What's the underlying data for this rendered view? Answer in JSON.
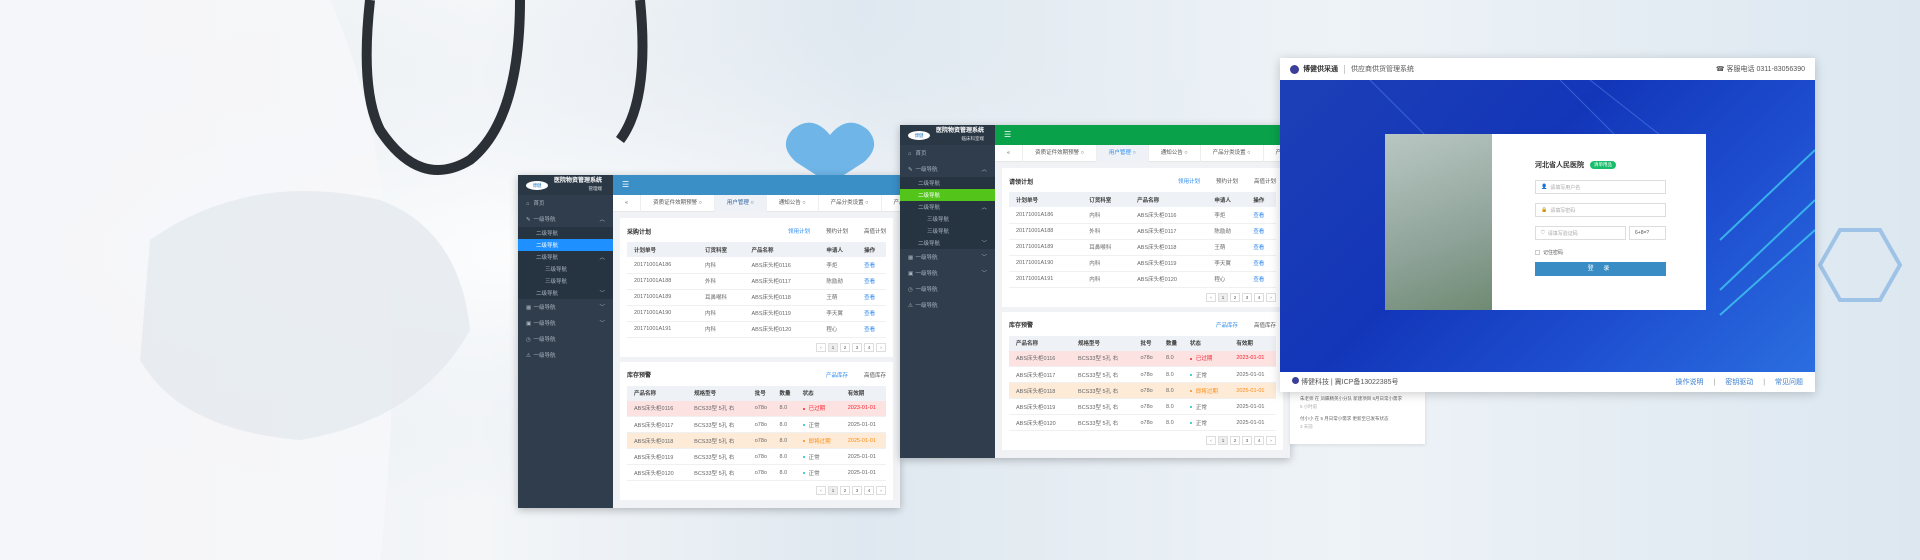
{
  "dashboards": [
    {
      "app_title": "医院物资管理系统",
      "app_sub": "管理端",
      "logo_text": "博健",
      "accent": "#3a8fc6",
      "active": "#1e90ff",
      "plan_title": "采购计划"
    },
    {
      "app_title": "医院物资管理系统",
      "app_sub": "临床科室端",
      "logo_text": "博健",
      "accent": "#0aa14b",
      "active": "#52c41a",
      "plan_title": "请领计划"
    }
  ],
  "nav": [
    {
      "label": "首页",
      "level": 1,
      "icon": "home-icon"
    },
    {
      "label": "一级导航",
      "level": 1,
      "icon": "edit-icon",
      "caret": "^"
    },
    {
      "label": "二级导航",
      "level": 2
    },
    {
      "label": "二级导航",
      "level": 2,
      "active": true
    },
    {
      "label": "二级导航",
      "level": 2,
      "caret": "^"
    },
    {
      "label": "三级导航",
      "level": 3
    },
    {
      "label": "三级导航",
      "level": 3
    },
    {
      "label": "二级导航",
      "level": 2,
      "caret": "v"
    },
    {
      "label": "一级导航",
      "level": 1,
      "icon": "grid-icon",
      "caret": "v"
    },
    {
      "label": "一级导航",
      "level": 1,
      "icon": "calendar-icon",
      "caret": "v"
    },
    {
      "label": "一级导航",
      "level": 1,
      "icon": "clock-icon"
    },
    {
      "label": "一级导航",
      "level": 1,
      "icon": "warning-icon"
    }
  ],
  "tabs": [
    {
      "label": "资质证件效期预警"
    },
    {
      "label": "用户管理",
      "active": true
    },
    {
      "label": "通知公告"
    },
    {
      "label": "产品分类设置"
    },
    {
      "label": "产品出库"
    }
  ],
  "plan": {
    "tabs": [
      "领用计划",
      "预约计划",
      "高值计划"
    ],
    "columns": [
      "计划单号",
      "订货科室",
      "产品名称",
      "申请人",
      "操作"
    ],
    "rows": [
      [
        "20171001A186",
        "内科",
        "ABS床头柜0116",
        "李炬",
        "查看"
      ],
      [
        "20171001A188",
        "外科",
        "ABS床头柜0117",
        "陈励勋",
        "查看"
      ],
      [
        "20171001A189",
        "耳鼻喉科",
        "ABS床头柜0118",
        "王萌",
        "查看"
      ],
      [
        "20171001A190",
        "内科",
        "ABS床头柜0119",
        "李天翼",
        "查看"
      ],
      [
        "20171001A191",
        "内科",
        "ABS床头柜0120",
        "程心",
        "查看"
      ]
    ],
    "pages": [
      "‹",
      "1",
      "2",
      "3",
      "4",
      "›"
    ]
  },
  "stock": {
    "title": "库存预警",
    "tabs": [
      "产品库存",
      "高值库存"
    ],
    "columns": [
      "产品名称",
      "规格型号",
      "批号",
      "数量",
      "状态",
      "有效期"
    ],
    "rows": [
      {
        "cells": [
          "ABS床头柜0116",
          "BCS33型 5孔 右",
          "o78o",
          "8.0",
          "已过期",
          "2023-01-01"
        ],
        "status": "expired"
      },
      {
        "cells": [
          "ABS床头柜0117",
          "BCS33型 5孔 右",
          "o78o",
          "8.0",
          "正常",
          "2025-01-01"
        ],
        "status": "normal"
      },
      {
        "cells": [
          "ABS床头柜0118",
          "BCS33型 5孔 右",
          "o78o",
          "8.0",
          "即将过期",
          "2025-01-01"
        ],
        "status": "expiring"
      },
      {
        "cells": [
          "ABS床头柜0119",
          "BCS33型 5孔 右",
          "o78o",
          "8.0",
          "正常",
          "2025-01-01"
        ],
        "status": "normal"
      },
      {
        "cells": [
          "ABS床头柜0120",
          "BCS33型 5孔 右",
          "o78o",
          "8.0",
          "正常",
          "2025-01-01"
        ],
        "status": "normal"
      }
    ],
    "status_colors": {
      "expired": "#f5222d",
      "normal": "#13c2c2",
      "expiring": "#fa8c16"
    }
  },
  "login": {
    "brand": "博健供采通",
    "system": "供应商供货管理系统",
    "phone": "客服电话 0311-83056390",
    "hospital": "河北省人民医院",
    "badge": "清单用品",
    "username_placeholder": "请填写用户名",
    "password_placeholder": "请填写密码",
    "captcha_placeholder": "请填写验证码",
    "captcha": "6+8=?",
    "remember": "记住密码",
    "submit": "登 录",
    "footer_company": "博健科技 |",
    "footer_icp": "冀ICP备13022385号",
    "links": [
      "操作说明",
      "|",
      "密钥驱动",
      "|",
      "常见问题"
    ]
  },
  "feed": [
    {
      "text": "朱老师 在 凤蝶精英小分队 新建项目 5月日常小需求",
      "time": "5 小时前"
    },
    {
      "text": "付小小 在 5 月日常小需求 更新至已发布状态",
      "time": "3 天前"
    }
  ]
}
